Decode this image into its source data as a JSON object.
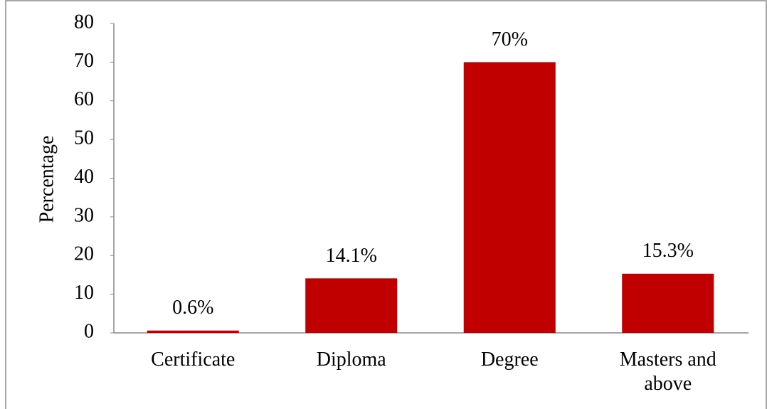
{
  "chart_data": {
    "type": "bar",
    "y_label": "Percentage",
    "categories": [
      "Certificate",
      "Diploma",
      "Degree",
      "Masters and above"
    ],
    "values": [
      0.6,
      14.1,
      70,
      15.3
    ],
    "value_labels": [
      "0.6%",
      "14.1%",
      "70%",
      "15.3%"
    ],
    "color": "#c00000",
    "ylim": [
      0,
      80
    ],
    "yticks": [
      0,
      10,
      20,
      30,
      40,
      50,
      60,
      70,
      80
    ],
    "grid": false
  }
}
